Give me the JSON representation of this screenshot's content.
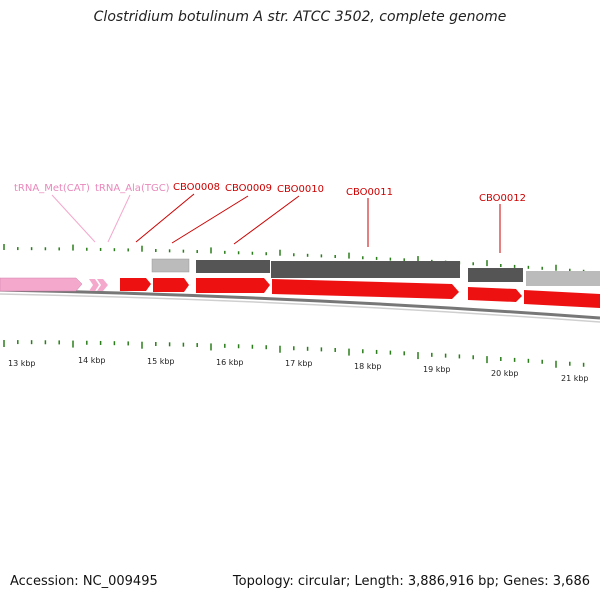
{
  "title": "Clostridium botulinum A str. ATCC 3502, complete genome",
  "footer": {
    "accession": "Accession: NC_009495",
    "summary": "Topology: circular; Length: 3,886,916 bp; Genes: 3,686"
  },
  "colors": {
    "cds": "#ee1111",
    "trna": "#f4a8cc",
    "cds_label": "#cc0000",
    "trna_label": "#e888bb",
    "tick": "#2a7d1a",
    "backbone": "#777777",
    "dark_gene": "#555555",
    "light_gene": "#bbbbbb"
  },
  "axis": {
    "unit": "kbp",
    "tick_labels": [
      "13 kbp",
      "14 kbp",
      "15 kbp",
      "16 kbp",
      "17 kbp",
      "18 kbp",
      "19 kbp",
      "20 kbp",
      "21 kbp"
    ]
  },
  "features": [
    {
      "label": "tRNA_Met(CAT)",
      "type": "tRNA"
    },
    {
      "label": "tRNA_Ala(TGC)",
      "type": "tRNA"
    },
    {
      "label": "CBO0008",
      "type": "CDS"
    },
    {
      "label": "CBO0009",
      "type": "CDS"
    },
    {
      "label": "CBO0010",
      "type": "CDS"
    },
    {
      "label": "CBO0011",
      "type": "CDS"
    },
    {
      "label": "CBO0012",
      "type": "CDS"
    }
  ]
}
